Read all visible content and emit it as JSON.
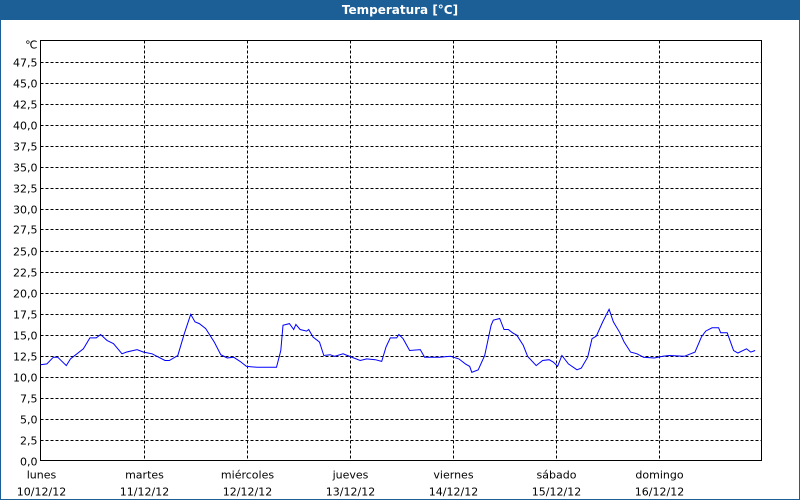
{
  "window": {
    "title": "Temperatura [°C]"
  },
  "chart_data": {
    "type": "line",
    "title": "Temperatura [°C]",
    "ylabel": "℃",
    "ylim": [
      0,
      50
    ],
    "yticks": [
      "0,0",
      "2,5",
      "5,0",
      "7,5",
      "10,0",
      "12,5",
      "15,0",
      "17,5",
      "20,0",
      "22,5",
      "25,0",
      "27,5",
      "30,0",
      "32,5",
      "35,0",
      "37,5",
      "40,0",
      "42,5",
      "45,0",
      "47,5"
    ],
    "xlim": [
      "2012-12-10T00:00",
      "2012-12-17T00:00"
    ],
    "xticks": [
      {
        "day": "lunes",
        "date": "10/12/12"
      },
      {
        "day": "martes",
        "date": "11/12/12"
      },
      {
        "day": "miércoles",
        "date": "12/12/12"
      },
      {
        "day": "jueves",
        "date": "13/12/12"
      },
      {
        "day": "viernes",
        "date": "14/12/12"
      },
      {
        "day": "sábado",
        "date": "15/12/12"
      },
      {
        "day": "domingo",
        "date": "16/12/12"
      }
    ],
    "grid": true,
    "line_color": "#0000ff",
    "series": [
      {
        "points": [
          [
            "2012-12-10T00:00",
            11.4
          ],
          [
            "2012-12-10T01:30",
            11.5
          ],
          [
            "2012-12-10T03:00",
            12.3
          ],
          [
            "2012-12-10T04:00",
            12.3
          ],
          [
            "2012-12-10T06:00",
            11.3
          ],
          [
            "2012-12-10T07:00",
            12.1
          ],
          [
            "2012-12-10T10:00",
            13.3
          ],
          [
            "2012-12-10T11:30",
            14.6
          ],
          [
            "2012-12-10T13:00",
            14.6
          ],
          [
            "2012-12-10T14:00",
            15.0
          ],
          [
            "2012-12-10T15:30",
            14.3
          ],
          [
            "2012-12-10T17:00",
            13.9
          ],
          [
            "2012-12-10T19:00",
            12.7
          ],
          [
            "2012-12-10T20:00",
            12.9
          ],
          [
            "2012-12-10T22:30",
            13.2
          ],
          [
            "2012-12-11T00:00",
            12.9
          ],
          [
            "2012-12-11T02:00",
            12.7
          ],
          [
            "2012-12-11T05:00",
            11.9
          ],
          [
            "2012-12-11T06:00",
            11.9
          ],
          [
            "2012-12-11T08:00",
            12.5
          ],
          [
            "2012-12-11T09:30",
            15.1
          ],
          [
            "2012-12-11T11:00",
            17.4
          ],
          [
            "2012-12-11T12:00",
            16.5
          ],
          [
            "2012-12-11T13:00",
            16.3
          ],
          [
            "2012-12-11T14:30",
            15.7
          ],
          [
            "2012-12-11T16:30",
            14.1
          ],
          [
            "2012-12-11T18:00",
            12.6
          ],
          [
            "2012-12-11T19:30",
            12.2
          ],
          [
            "2012-12-11T21:00",
            12.3
          ],
          [
            "2012-12-11T22:30",
            11.8
          ],
          [
            "2012-12-12T00:00",
            11.2
          ],
          [
            "2012-12-12T02:30",
            11.1
          ],
          [
            "2012-12-12T07:00",
            11.1
          ],
          [
            "2012-12-12T08:00",
            13.1
          ],
          [
            "2012-12-12T08:30",
            16.1
          ],
          [
            "2012-12-12T10:00",
            16.3
          ],
          [
            "2012-12-12T11:00",
            15.6
          ],
          [
            "2012-12-12T11:30",
            16.2
          ],
          [
            "2012-12-12T12:30",
            15.6
          ],
          [
            "2012-12-12T14:00",
            15.4
          ],
          [
            "2012-12-12T14:30",
            15.6
          ],
          [
            "2012-12-12T15:30",
            14.7
          ],
          [
            "2012-12-12T17:00",
            14.1
          ],
          [
            "2012-12-12T18:00",
            12.5
          ],
          [
            "2012-12-12T19:30",
            12.6
          ],
          [
            "2012-12-12T20:30",
            12.4
          ],
          [
            "2012-12-12T22:30",
            12.7
          ],
          [
            "2012-12-12T23:30",
            12.5
          ],
          [
            "2012-12-13T02:30",
            11.9
          ],
          [
            "2012-12-13T04:00",
            12.1
          ],
          [
            "2012-12-13T06:00",
            12.0
          ],
          [
            "2012-12-13T07:30",
            11.8
          ],
          [
            "2012-12-13T08:30",
            13.5
          ],
          [
            "2012-12-13T09:30",
            14.6
          ],
          [
            "2012-12-13T11:00",
            14.6
          ],
          [
            "2012-12-13T11:30",
            15.0
          ],
          [
            "2012-12-13T12:30",
            14.5
          ],
          [
            "2012-12-13T14:00",
            13.1
          ],
          [
            "2012-12-13T16:30",
            13.2
          ],
          [
            "2012-12-13T17:30",
            12.3
          ],
          [
            "2012-12-13T21:00",
            12.3
          ],
          [
            "2012-12-13T23:30",
            12.4
          ],
          [
            "2012-12-14T01:30",
            12.1
          ],
          [
            "2012-12-14T03:00",
            11.5
          ],
          [
            "2012-12-14T04:00",
            11.2
          ],
          [
            "2012-12-14T04:30",
            10.5
          ],
          [
            "2012-12-14T06:00",
            10.8
          ],
          [
            "2012-12-14T07:30",
            12.5
          ],
          [
            "2012-12-14T09:00",
            16.1
          ],
          [
            "2012-12-14T09:30",
            16.7
          ],
          [
            "2012-12-14T11:00",
            16.9
          ],
          [
            "2012-12-14T12:00",
            15.6
          ],
          [
            "2012-12-14T13:00",
            15.6
          ],
          [
            "2012-12-14T14:00",
            15.2
          ],
          [
            "2012-12-14T15:00",
            14.9
          ],
          [
            "2012-12-14T16:30",
            13.7
          ],
          [
            "2012-12-14T17:30",
            12.4
          ],
          [
            "2012-12-14T19:30",
            11.3
          ],
          [
            "2012-12-14T21:00",
            11.9
          ],
          [
            "2012-12-14T22:30",
            12.0
          ],
          [
            "2012-12-14T23:30",
            11.7
          ],
          [
            "2012-12-15T00:30",
            11.2
          ],
          [
            "2012-12-15T01:30",
            12.5
          ],
          [
            "2012-12-15T03:00",
            11.5
          ],
          [
            "2012-12-15T05:00",
            10.8
          ],
          [
            "2012-12-15T06:00",
            11.0
          ],
          [
            "2012-12-15T07:30",
            12.3
          ],
          [
            "2012-12-15T08:30",
            14.5
          ],
          [
            "2012-12-15T09:30",
            14.8
          ],
          [
            "2012-12-15T11:00",
            16.5
          ],
          [
            "2012-12-15T12:30",
            18.0
          ],
          [
            "2012-12-15T13:30",
            16.5
          ],
          [
            "2012-12-15T15:00",
            15.2
          ],
          [
            "2012-12-15T16:00",
            14.1
          ],
          [
            "2012-12-15T17:30",
            12.9
          ],
          [
            "2012-12-15T19:00",
            12.7
          ],
          [
            "2012-12-15T20:30",
            12.3
          ],
          [
            "2012-12-15T23:00",
            12.2
          ],
          [
            "2012-12-16T01:00",
            12.4
          ],
          [
            "2012-12-16T02:30",
            12.5
          ],
          [
            "2012-12-16T06:00",
            12.4
          ],
          [
            "2012-12-16T08:30",
            12.9
          ],
          [
            "2012-12-16T10:00",
            14.7
          ],
          [
            "2012-12-16T11:00",
            15.4
          ],
          [
            "2012-12-16T12:30",
            15.8
          ],
          [
            "2012-12-16T14:00",
            15.8
          ],
          [
            "2012-12-16T14:30",
            15.2
          ],
          [
            "2012-12-16T16:00",
            15.2
          ],
          [
            "2012-12-16T17:30",
            13.1
          ],
          [
            "2012-12-16T18:30",
            12.8
          ],
          [
            "2012-12-16T20:30",
            13.3
          ],
          [
            "2012-12-16T21:30",
            12.9
          ],
          [
            "2012-12-16T22:30",
            13.1
          ]
        ]
      }
    ]
  }
}
